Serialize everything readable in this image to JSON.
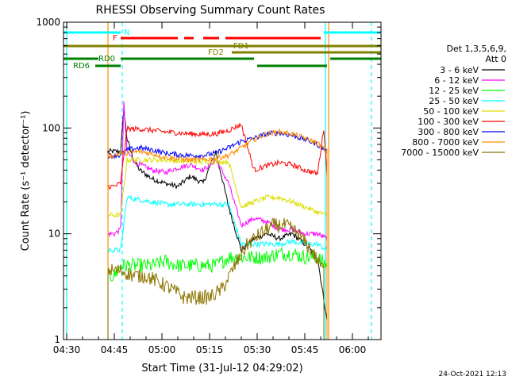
{
  "chart_data": {
    "type": "line",
    "title": "RHESSI Observing Summary Count Rates",
    "xlabel": "Start Time (31-Jul-12 04:29:02)",
    "ylabel": "Count Rate (s⁻¹ detector⁻¹)",
    "yscale": "log",
    "ylim": [
      1,
      1000
    ],
    "xlim_minutes_after_0429": [
      0,
      100
    ],
    "x_ticks": [
      {
        "label": "04:30",
        "min": 1
      },
      {
        "label": "04:45",
        "min": 16
      },
      {
        "label": "05:00",
        "min": 31
      },
      {
        "label": "05:15",
        "min": 46
      },
      {
        "label": "05:30",
        "min": 61
      },
      {
        "label": "05:45",
        "min": 76
      },
      {
        "label": "06:00",
        "min": 91
      }
    ],
    "y_ticks": [
      {
        "label": "1",
        "value": 1
      },
      {
        "label": "10",
        "value": 10
      },
      {
        "label": "100",
        "value": 100
      },
      {
        "label": "1000",
        "value": 1000
      }
    ],
    "legend": {
      "position": "right",
      "header": [
        "Det 1,3,5,6,9,",
        "Att 0"
      ],
      "entries": [
        {
          "name": "3 - 6 keV",
          "color": "#000000"
        },
        {
          "name": "6 - 12 keV",
          "color": "#ff00ff"
        },
        {
          "name": "12 - 25 keV",
          "color": "#00ff00"
        },
        {
          "name": "25 - 50 keV",
          "color": "#00ffff"
        },
        {
          "name": "50 - 100 keV",
          "color": "#dddd00"
        },
        {
          "name": "100 - 300 keV",
          "color": "#ff0000"
        },
        {
          "name": "300 - 800 keV",
          "color": "#0000ff"
        },
        {
          "name": "800 - 7000 keV",
          "color": "#ff8c00"
        },
        {
          "name": "7000 - 15000 keV",
          "color": "#8b7500"
        }
      ]
    },
    "flags": [
      {
        "label": "N",
        "color": "#00ffff",
        "segments": [
          [
            0,
            18
          ],
          [
            82,
            100
          ]
        ]
      },
      {
        "label": "F",
        "color": "#ff0000",
        "segments": [
          [
            18,
            36
          ],
          [
            38,
            41
          ],
          [
            44,
            49
          ],
          [
            51,
            81
          ]
        ]
      },
      {
        "label": "FD1",
        "color": "#808000",
        "segments": [
          [
            0,
            100
          ]
        ]
      },
      {
        "label": "FD2",
        "color": "#808000",
        "segments": [
          [
            53,
            100
          ]
        ]
      },
      {
        "label": "RD0",
        "color": "#008000",
        "segments": [
          [
            0,
            11
          ],
          [
            18,
            60
          ],
          [
            84,
            100
          ]
        ]
      },
      {
        "label": "RD6",
        "color": "#008000",
        "segments": [
          [
            10,
            18
          ],
          [
            61,
            83
          ]
        ]
      }
    ],
    "vertical_lines": [
      {
        "min": 1,
        "color": "#00ffff",
        "style": "solid"
      },
      {
        "min": 18.5,
        "color": "#00ffff",
        "style": "dashed"
      },
      {
        "min": 82.5,
        "color": "#00ffff",
        "style": "solid"
      },
      {
        "min": 97,
        "color": "#00ffff",
        "style": "dashed"
      },
      {
        "min": 14,
        "color": "#ff8c00",
        "style": "solid"
      },
      {
        "min": 83.5,
        "color": "#ff8c00",
        "style": "solid"
      }
    ],
    "series": [
      {
        "name": "3 - 6 keV",
        "color": "#000000",
        "x": [
          14,
          16,
          18,
          19,
          20,
          22,
          24,
          28,
          32,
          36,
          40,
          44,
          48,
          52,
          56,
          60,
          64,
          68,
          72,
          76,
          80,
          83
        ],
        "y": [
          60,
          60,
          60,
          150,
          80,
          50,
          40,
          33,
          30,
          28,
          35,
          30,
          60,
          18,
          7,
          9,
          10,
          9,
          10,
          8,
          6,
          1.5
        ]
      },
      {
        "name": "6 - 12 keV",
        "color": "#ff00ff",
        "x": [
          14,
          16,
          18,
          19,
          20,
          22,
          24,
          28,
          32,
          36,
          40,
          44,
          48,
          52,
          56,
          60,
          64,
          68,
          72,
          76,
          80,
          83
        ],
        "y": [
          10,
          10,
          11,
          170,
          60,
          50,
          45,
          40,
          38,
          42,
          45,
          40,
          50,
          30,
          12,
          14,
          13,
          11,
          11,
          10,
          10,
          9
        ]
      },
      {
        "name": "12 - 25 keV",
        "color": "#00ff00",
        "x": [
          14,
          16,
          18,
          20,
          24,
          28,
          32,
          36,
          40,
          44,
          48,
          52,
          56,
          60,
          64,
          68,
          72,
          76,
          80,
          83
        ],
        "y": [
          4,
          4,
          5,
          5,
          5,
          5,
          5.5,
          5,
          5,
          5,
          5,
          6,
          6,
          6,
          6,
          6.5,
          6.5,
          6,
          6,
          5
        ]
      },
      {
        "name": "25 - 50 keV",
        "color": "#00ffff",
        "x": [
          14,
          16,
          18,
          20,
          24,
          28,
          32,
          36,
          40,
          44,
          48,
          52,
          56,
          60,
          64,
          68,
          72,
          76,
          80,
          83
        ],
        "y": [
          7,
          7,
          7,
          22,
          21,
          20,
          19,
          19,
          19,
          19,
          19,
          19,
          8,
          8,
          8,
          8,
          8.5,
          8,
          8,
          7
        ]
      },
      {
        "name": "50 - 100 keV",
        "color": "#dddd00",
        "x": [
          14,
          16,
          18,
          20,
          24,
          28,
          32,
          36,
          40,
          44,
          48,
          52,
          56,
          60,
          64,
          68,
          72,
          76,
          80,
          83
        ],
        "y": [
          15,
          15,
          15,
          50,
          50,
          50,
          50,
          49,
          48,
          48,
          48,
          48,
          18,
          20,
          22,
          22,
          20,
          18,
          16,
          15
        ]
      },
      {
        "name": "100 - 300 keV",
        "color": "#ff0000",
        "x": [
          14,
          16,
          18,
          20,
          24,
          28,
          32,
          36,
          40,
          44,
          48,
          52,
          56,
          60,
          64,
          68,
          72,
          76,
          80,
          82,
          83
        ],
        "y": [
          28,
          28,
          30,
          98,
          98,
          95,
          92,
          90,
          88,
          87,
          88,
          95,
          108,
          40,
          44,
          47,
          45,
          40,
          37,
          100,
          35
        ]
      },
      {
        "name": "300 - 800 keV",
        "color": "#0000ff",
        "x": [
          14,
          16,
          18,
          20,
          24,
          28,
          32,
          36,
          40,
          44,
          48,
          52,
          56,
          60,
          64,
          68,
          72,
          76,
          80,
          83
        ],
        "y": [
          55,
          55,
          55,
          62,
          65,
          62,
          58,
          56,
          55,
          55,
          58,
          65,
          75,
          80,
          88,
          90,
          85,
          78,
          70,
          60
        ]
      },
      {
        "name": "800 - 7000 keV",
        "color": "#ff8c00",
        "x": [
          14,
          16,
          18,
          20,
          24,
          28,
          32,
          36,
          40,
          44,
          48,
          52,
          56,
          60,
          64,
          68,
          72,
          76,
          80,
          83
        ],
        "y": [
          55,
          55,
          58,
          58,
          60,
          57,
          53,
          51,
          50,
          50,
          52,
          55,
          65,
          78,
          88,
          92,
          88,
          80,
          72,
          60
        ]
      },
      {
        "name": "7000 - 15000 keV",
        "color": "#8b7500",
        "x": [
          14,
          16,
          18,
          22,
          26,
          30,
          34,
          38,
          42,
          46,
          50,
          54,
          58,
          62,
          66,
          70,
          74,
          78,
          82
        ],
        "y": [
          4.5,
          4.5,
          4.5,
          4,
          4,
          3.5,
          3,
          2.5,
          2.5,
          2.5,
          3,
          5,
          8,
          10,
          12,
          12,
          10,
          7,
          4.5
        ]
      }
    ],
    "footer_timestamp": "24-Oct-2021 12:13"
  }
}
